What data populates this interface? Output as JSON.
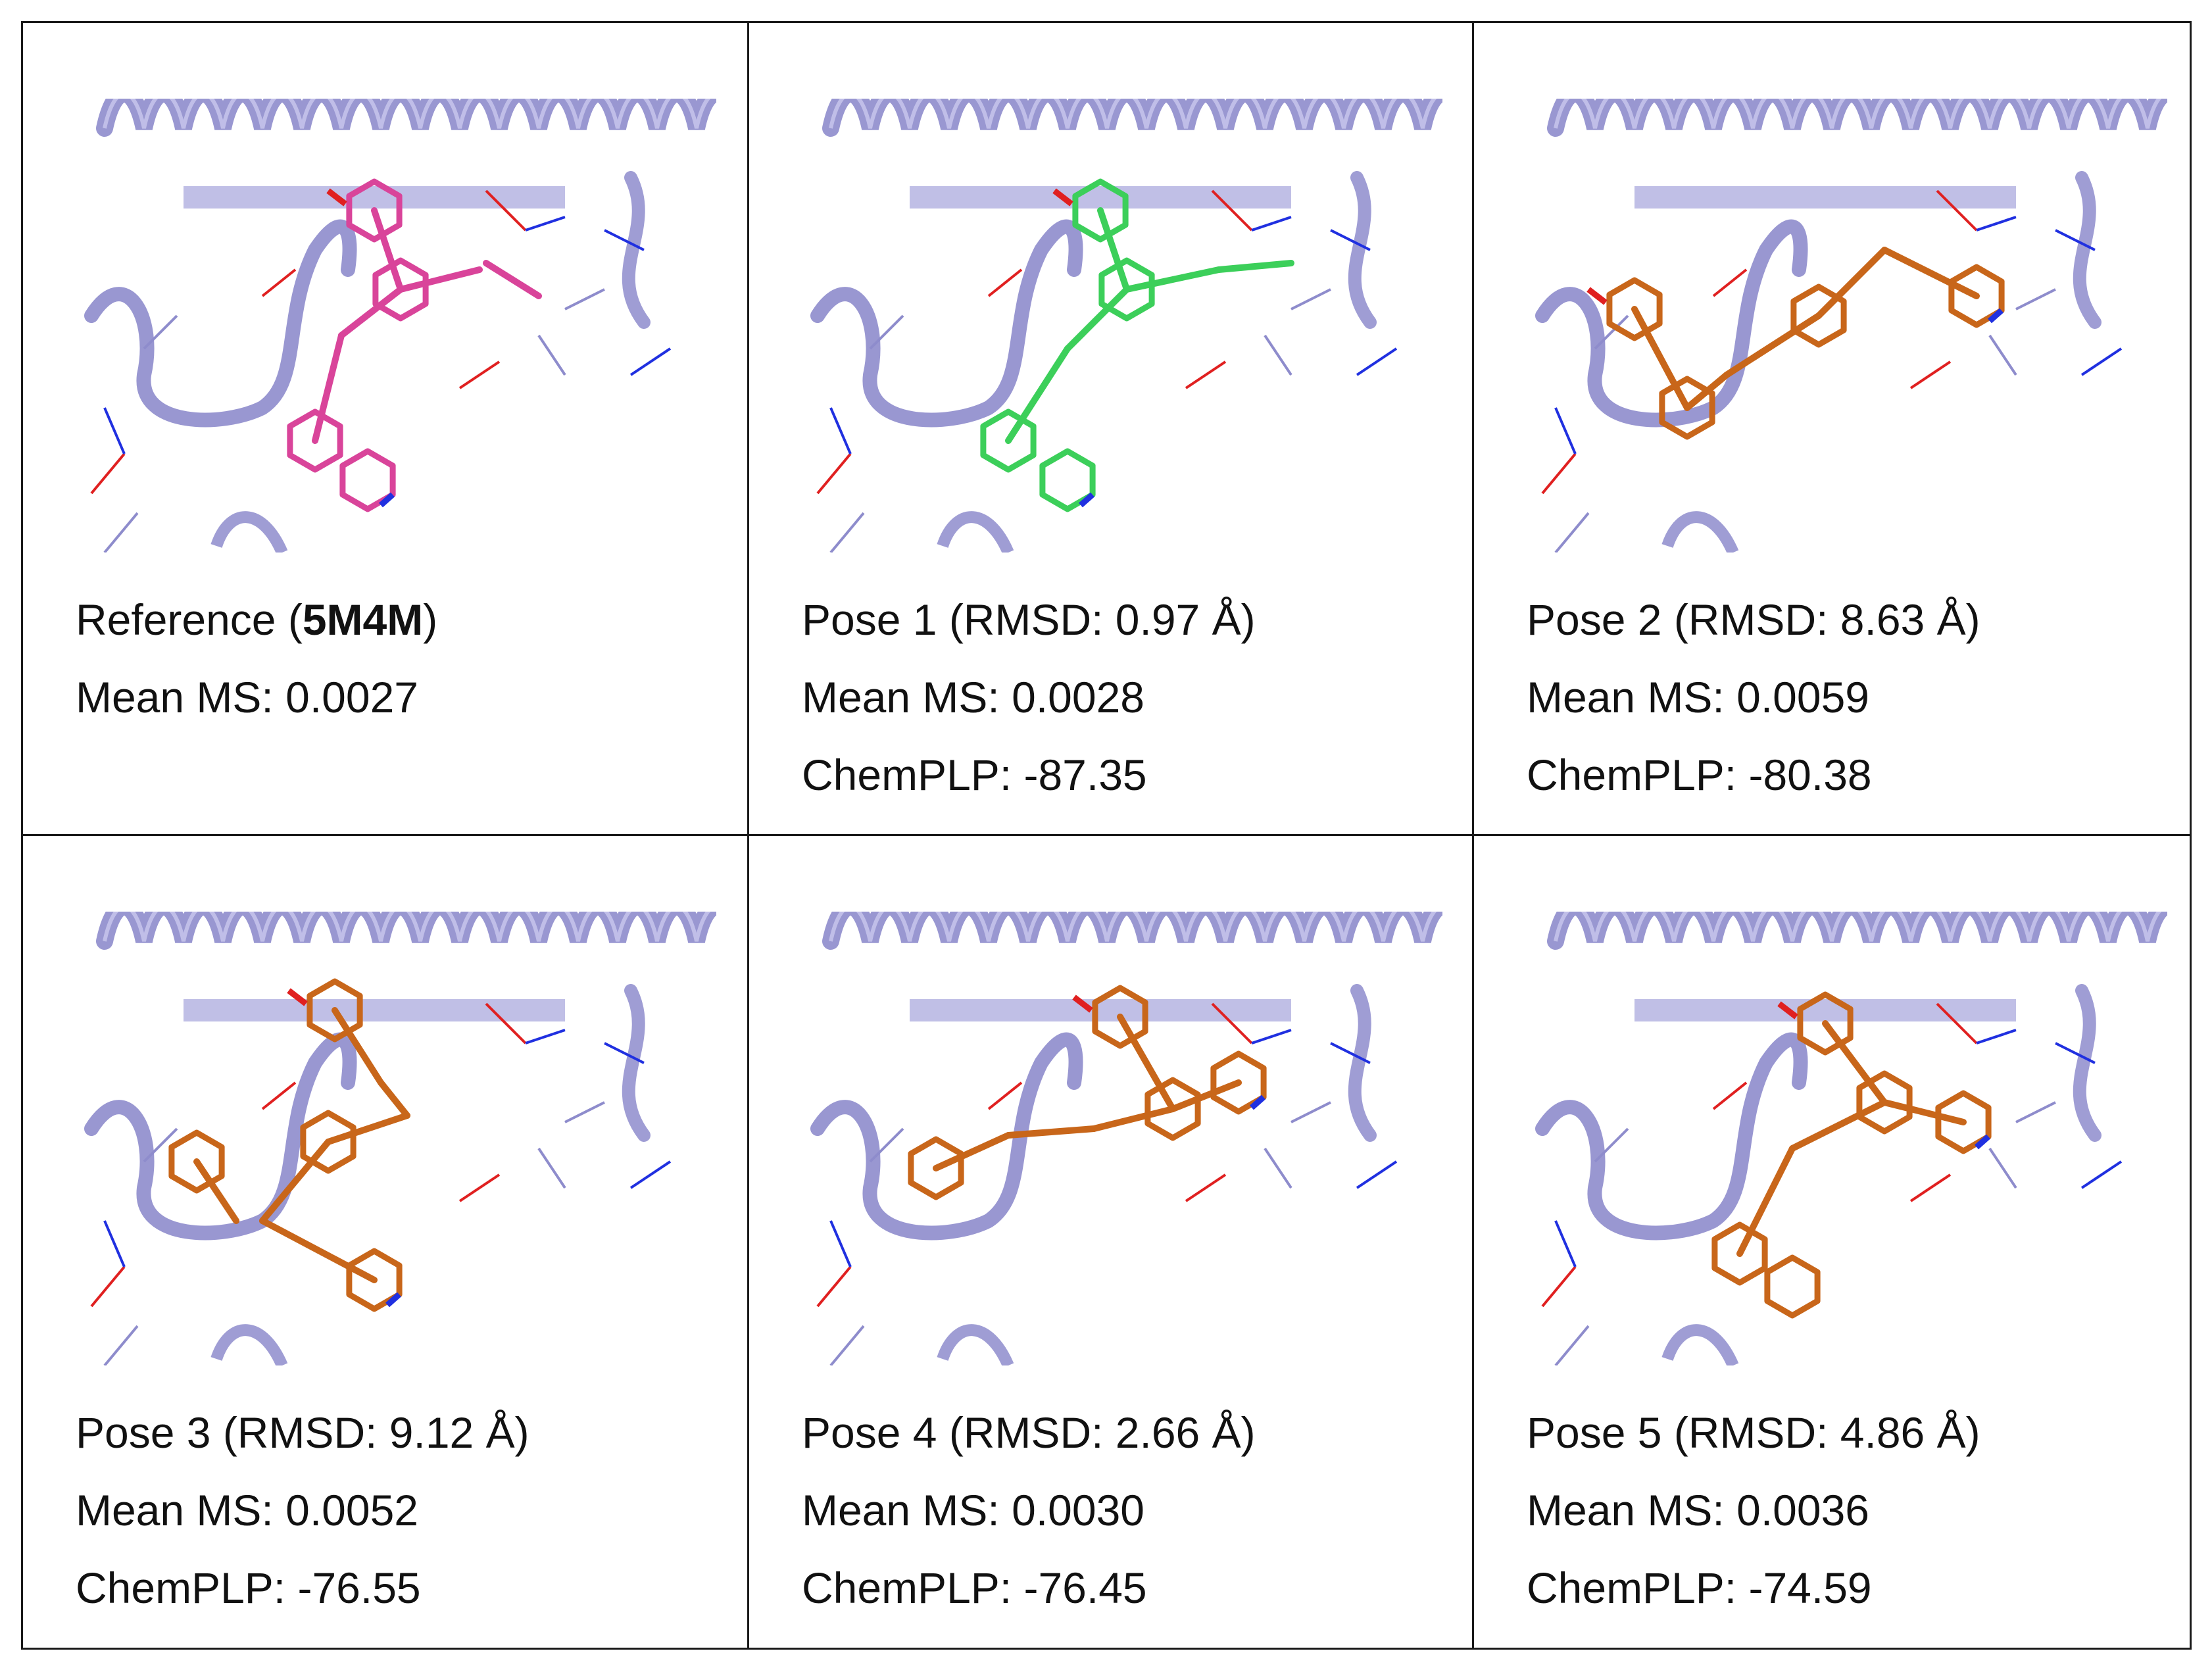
{
  "panels": [
    {
      "id": "reference",
      "ligand_color": "#d9449a",
      "title_prefix": "Reference (",
      "title_bold": "5M4M",
      "title_suffix": ")",
      "line2": "Mean MS: 0.0027",
      "line3": ""
    },
    {
      "id": "pose1",
      "ligand_color": "#3ccf5a",
      "title": "Pose 1 (RMSD: 0.97 Å)",
      "line2": "Mean MS: 0.0028",
      "line3": "ChemPLP: -87.35"
    },
    {
      "id": "pose2",
      "ligand_color": "#c8661a",
      "title": "Pose 2 (RMSD: 8.63 Å)",
      "line2": "Mean MS: 0.0059",
      "line3": "ChemPLP: -80.38"
    },
    {
      "id": "pose3",
      "ligand_color": "#c8661a",
      "title": "Pose 3 (RMSD: 9.12 Å)",
      "line2": "Mean MS: 0.0052",
      "line3": "ChemPLP: -76.55"
    },
    {
      "id": "pose4",
      "ligand_color": "#c8661a",
      "title": "Pose 4 (RMSD: 2.66 Å)",
      "line2": "Mean MS: 0.0030",
      "line3": "ChemPLP: -76.45"
    },
    {
      "id": "pose5",
      "ligand_color": "#c8661a",
      "title": "Pose 5 (RMSD: 4.86 Å)",
      "line2": "Mean MS: 0.0036",
      "line3": "ChemPLP: -74.59"
    }
  ],
  "protein_color": "#8e8ccc",
  "oxygen_color": "#e02020",
  "nitrogen_color": "#2030e0"
}
